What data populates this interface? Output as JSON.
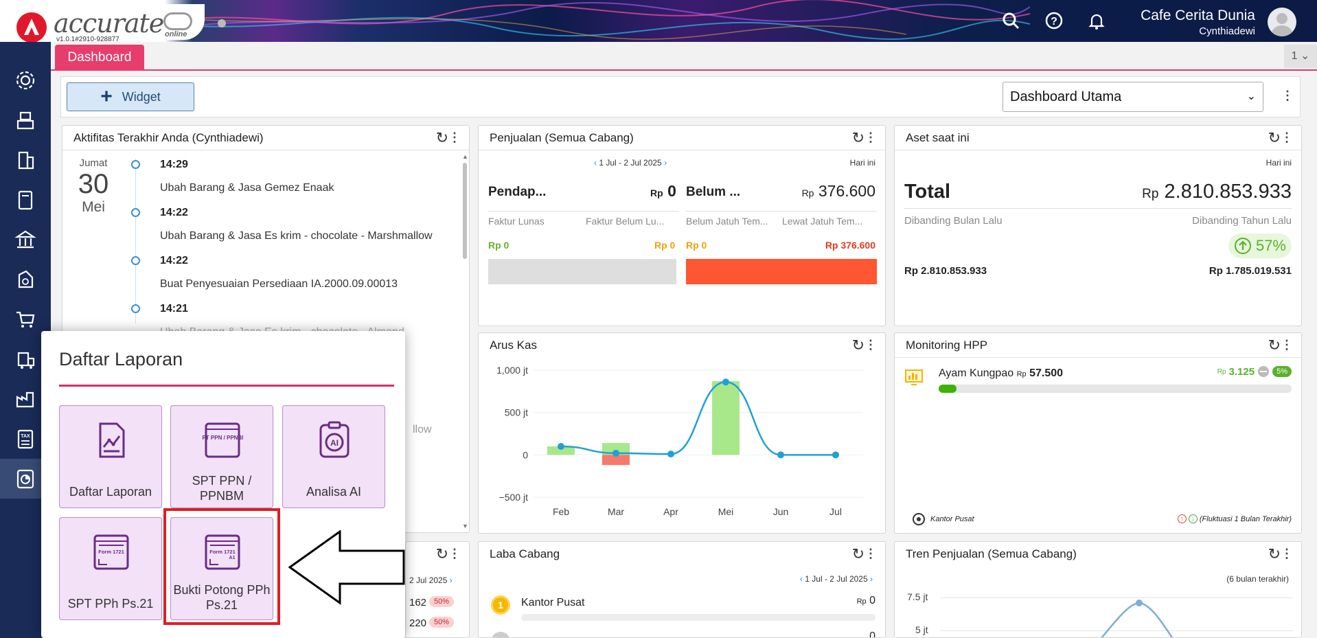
{
  "app": {
    "logo_text": "accurate",
    "logo_suffix": "online",
    "version": "v1.0.1#2910-928877",
    "company": "Cafe Cerita Dunia",
    "user": "Cynthiadewi"
  },
  "tabs": {
    "active": "Dashboard",
    "count": "1"
  },
  "toolbar": {
    "widget_label": "Widget",
    "dashboard_select": "Dashboard Utama"
  },
  "activity": {
    "title": "Aktifitas Terakhir Anda (Cynthiadewi)",
    "day": "Jumat",
    "date": "30",
    "month": "Mei",
    "items": [
      {
        "time": "14:29",
        "text": "Ubah Barang & Jasa Gemez Enaak"
      },
      {
        "time": "14:22",
        "text": "Ubah Barang & Jasa Es krim - chocolate - Marshmallow"
      },
      {
        "time": "14:22",
        "text": "Buat Penyesuaian Persediaan IA.2000.09.00013"
      },
      {
        "time": "14:21",
        "text": "Ubah Barang & Jasa Es krim - chocolate - Almond"
      }
    ],
    "partial_text": "llow"
  },
  "penjualan": {
    "title": "Penjualan (Semua Cabang)",
    "range": "1 Jul - 2 Jul 2025",
    "period": "Hari ini",
    "col1_label": "Pendap...",
    "col1_value": "0",
    "col2_label": "Belum ...",
    "col2_value": "376.600",
    "rp": "Rp",
    "sub1": "Faktur Lunas",
    "sub2": "Faktur Belum Lu...",
    "sub3": "Belum Jatuh Tem...",
    "sub4": "Lewat Jatuh Tem...",
    "v1": "Rp 0",
    "v2": "Rp 0",
    "v3": "Rp 0",
    "v4": "Rp 376.600"
  },
  "aset": {
    "title": "Aset saat ini",
    "period": "Hari ini",
    "total_label": "Total",
    "rp": "Rp",
    "total_value": "2.810.853.933",
    "cmp1": "Dibanding Bulan Lalu",
    "cmp2": "Dibanding Tahun Lalu",
    "pct": "57%",
    "v1": "Rp 2.810.853.933",
    "v2": "Rp 1.785.019.531"
  },
  "aruskas": {
    "title": "Arus Kas"
  },
  "chart_data": {
    "type": "bar",
    "categories": [
      "Feb",
      "Mar",
      "Apr",
      "Mei",
      "Jun",
      "Jul"
    ],
    "ytick_labels": [
      "1,000 jt",
      "500 jt",
      "0",
      "−500 jt"
    ],
    "ylim": [
      -500,
      1000
    ],
    "series": [
      {
        "values": [
          100,
          140,
          0,
          870,
          0,
          0
        ]
      },
      {
        "values": [
          0,
          -120,
          0,
          0,
          0,
          0
        ]
      },
      {
        "values": [
          100,
          20,
          10,
          860,
          0,
          0
        ]
      }
    ],
    "colors": {
      "in": "#a8e88a",
      "out": "#f47a6e",
      "line": "#1fa0d8"
    }
  },
  "hpp": {
    "title": "Monitoring HPP",
    "item": "Ayam Kungpao",
    "rp": "Rp",
    "value": "57.500",
    "change": "3.125",
    "badge": "5%",
    "branch": "Kantor Pusat",
    "note": "(Fluktuasi 1 Bulan Terakhir)",
    "progress": 0.05
  },
  "laba": {
    "title": "Laba Cabang",
    "range": "1 Jul - 2 Jul 2025",
    "branch": "Kantor Pusat",
    "rp": "Rp",
    "value": "0",
    "next_value": "0"
  },
  "tren": {
    "title": "Tren Penjualan (Semua Cabang)",
    "period": "(6 bulan terakhir)",
    "yticks": [
      "7.5 jt",
      "5 jt"
    ]
  },
  "hidden_card": {
    "range": "2 Jul 2025",
    "v1": "162",
    "v2": "220",
    "b1": "50%",
    "b2": "50%"
  },
  "laporan": {
    "title": "Daftar Laporan",
    "tiles": [
      {
        "label": "Daftar Laporan"
      },
      {
        "label": "SPT PPN / PPNBM"
      },
      {
        "label": "Analisa AI"
      },
      {
        "label": "SPT PPh Ps.21"
      },
      {
        "label": "Bukti Potong PPh Ps.21"
      }
    ],
    "icon_texts": {
      "spt_ppn": "SPT PPN / PPNBM",
      "form": "Form 1721",
      "form_a1": "A1",
      "ai": "AI"
    }
  }
}
